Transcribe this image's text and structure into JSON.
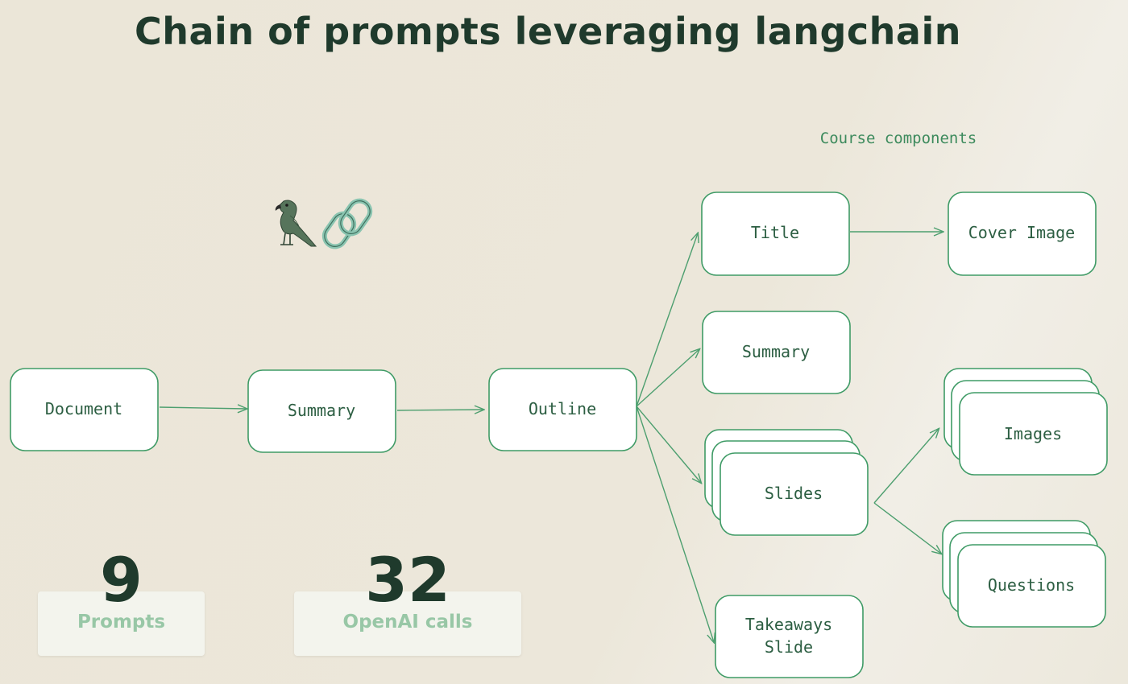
{
  "title": "Chain of prompts leveraging langchain",
  "annotation": "Course components",
  "logo": {
    "icons": [
      "parrot-icon",
      "chain-link-icon"
    ]
  },
  "nodes": {
    "document": "Document",
    "summary_main": "Summary",
    "outline": "Outline",
    "title": "Title",
    "cover_image": "Cover Image",
    "summary_component": "Summary",
    "slides": "Slides",
    "images": "Images",
    "questions": "Questions",
    "takeaways_line1": "Takeaways",
    "takeaways_line2": "Slide"
  },
  "stats": [
    {
      "value": "9",
      "label": "Prompts"
    },
    {
      "value": "32",
      "label": "OpenAI calls"
    }
  ],
  "colors": {
    "heading": "#1f3a2c",
    "node_stroke": "#3f9b66",
    "node_text": "#2c5e42",
    "stat_label": "#98c7a6"
  }
}
